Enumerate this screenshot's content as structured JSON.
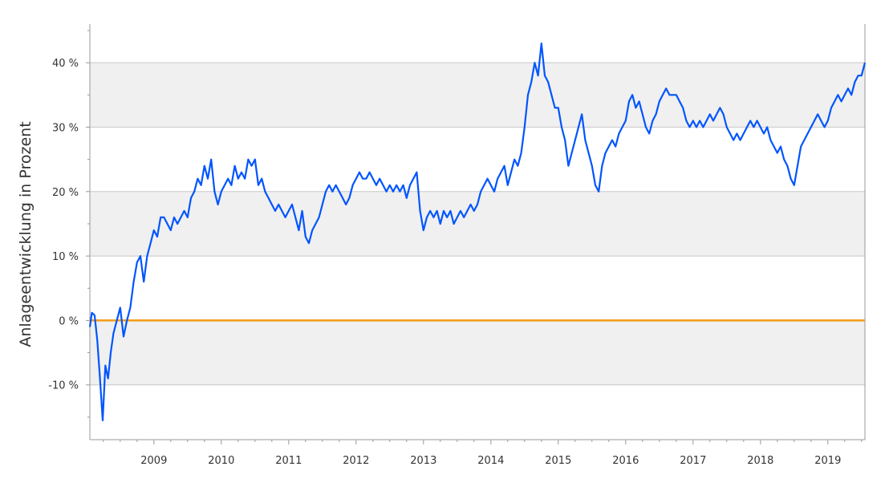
{
  "chart_data": {
    "type": "line",
    "ylabel": "Anlageentwicklung  in Prozent",
    "ylim": [
      -18.5,
      46
    ],
    "xlim": [
      2008.05,
      2019.55
    ],
    "grid": true,
    "y_ticks": [
      {
        "value": 40,
        "label": "40 %"
      },
      {
        "value": 30,
        "label": "30 %"
      },
      {
        "value": 20,
        "label": "20 %"
      },
      {
        "value": 10,
        "label": "10 %"
      },
      {
        "value": 0,
        "label": "0 %"
      },
      {
        "value": -10,
        "label": "-10 %"
      }
    ],
    "x_ticks": [
      {
        "value": 2009,
        "label": "2009"
      },
      {
        "value": 2010,
        "label": "2010"
      },
      {
        "value": 2011,
        "label": "2011"
      },
      {
        "value": 2012,
        "label": "2012"
      },
      {
        "value": 2013,
        "label": "2013"
      },
      {
        "value": 2014,
        "label": "2014"
      },
      {
        "value": 2015,
        "label": "2015"
      },
      {
        "value": 2016,
        "label": "2016"
      },
      {
        "value": 2017,
        "label": "2017"
      },
      {
        "value": 2018,
        "label": "2018"
      },
      {
        "value": 2019,
        "label": "2019"
      }
    ],
    "colors": {
      "series": "#0055ff",
      "zero_line": "#f39c12",
      "band": "#f0f0f0",
      "grid": "#c8c8c8",
      "axis": "#999999"
    },
    "baseline": {
      "value": 0
    },
    "series": [
      {
        "values": [
          [
            2008.05,
            -1
          ],
          [
            2008.08,
            1.2
          ],
          [
            2008.12,
            0.8
          ],
          [
            2008.16,
            -3
          ],
          [
            2008.2,
            -9
          ],
          [
            2008.24,
            -15.5
          ],
          [
            2008.28,
            -7
          ],
          [
            2008.32,
            -9
          ],
          [
            2008.36,
            -5
          ],
          [
            2008.4,
            -2
          ],
          [
            2008.45,
            0
          ],
          [
            2008.5,
            2
          ],
          [
            2008.55,
            -2.5
          ],
          [
            2008.6,
            0
          ],
          [
            2008.65,
            2
          ],
          [
            2008.7,
            6
          ],
          [
            2008.75,
            9
          ],
          [
            2008.8,
            10
          ],
          [
            2008.85,
            6
          ],
          [
            2008.9,
            10
          ],
          [
            2008.95,
            12
          ],
          [
            2009.0,
            14
          ],
          [
            2009.05,
            13
          ],
          [
            2009.1,
            16
          ],
          [
            2009.15,
            16
          ],
          [
            2009.2,
            15
          ],
          [
            2009.25,
            14
          ],
          [
            2009.3,
            16
          ],
          [
            2009.35,
            15
          ],
          [
            2009.4,
            16
          ],
          [
            2009.45,
            17
          ],
          [
            2009.5,
            16
          ],
          [
            2009.55,
            19
          ],
          [
            2009.6,
            20
          ],
          [
            2009.65,
            22
          ],
          [
            2009.7,
            21
          ],
          [
            2009.75,
            24
          ],
          [
            2009.8,
            22
          ],
          [
            2009.85,
            25
          ],
          [
            2009.9,
            20
          ],
          [
            2009.95,
            18
          ],
          [
            2010.0,
            20
          ],
          [
            2010.05,
            21
          ],
          [
            2010.1,
            22
          ],
          [
            2010.15,
            21
          ],
          [
            2010.2,
            24
          ],
          [
            2010.25,
            22
          ],
          [
            2010.3,
            23
          ],
          [
            2010.35,
            22
          ],
          [
            2010.4,
            25
          ],
          [
            2010.45,
            24
          ],
          [
            2010.5,
            25
          ],
          [
            2010.55,
            21
          ],
          [
            2010.6,
            22
          ],
          [
            2010.65,
            20
          ],
          [
            2010.7,
            19
          ],
          [
            2010.75,
            18
          ],
          [
            2010.8,
            17
          ],
          [
            2010.85,
            18
          ],
          [
            2010.9,
            17
          ],
          [
            2010.95,
            16
          ],
          [
            2011.0,
            17
          ],
          [
            2011.05,
            18
          ],
          [
            2011.1,
            16
          ],
          [
            2011.15,
            14
          ],
          [
            2011.2,
            17
          ],
          [
            2011.25,
            13
          ],
          [
            2011.3,
            12
          ],
          [
            2011.35,
            14
          ],
          [
            2011.4,
            15
          ],
          [
            2011.45,
            16
          ],
          [
            2011.5,
            18
          ],
          [
            2011.55,
            20
          ],
          [
            2011.6,
            21
          ],
          [
            2011.65,
            20
          ],
          [
            2011.7,
            21
          ],
          [
            2011.75,
            20
          ],
          [
            2011.8,
            19
          ],
          [
            2011.85,
            18
          ],
          [
            2011.9,
            19
          ],
          [
            2011.95,
            21
          ],
          [
            2012.0,
            22
          ],
          [
            2012.05,
            23
          ],
          [
            2012.1,
            22
          ],
          [
            2012.15,
            22
          ],
          [
            2012.2,
            23
          ],
          [
            2012.25,
            22
          ],
          [
            2012.3,
            21
          ],
          [
            2012.35,
            22
          ],
          [
            2012.4,
            21
          ],
          [
            2012.45,
            20
          ],
          [
            2012.5,
            21
          ],
          [
            2012.55,
            20
          ],
          [
            2012.6,
            21
          ],
          [
            2012.65,
            20
          ],
          [
            2012.7,
            21
          ],
          [
            2012.75,
            19
          ],
          [
            2012.8,
            21
          ],
          [
            2012.85,
            22
          ],
          [
            2012.9,
            23
          ],
          [
            2012.95,
            17
          ],
          [
            2013.0,
            14
          ],
          [
            2013.05,
            16
          ],
          [
            2013.1,
            17
          ],
          [
            2013.15,
            16
          ],
          [
            2013.2,
            17
          ],
          [
            2013.25,
            15
          ],
          [
            2013.3,
            17
          ],
          [
            2013.35,
            16
          ],
          [
            2013.4,
            17
          ],
          [
            2013.45,
            15
          ],
          [
            2013.5,
            16
          ],
          [
            2013.55,
            17
          ],
          [
            2013.6,
            16
          ],
          [
            2013.65,
            17
          ],
          [
            2013.7,
            18
          ],
          [
            2013.75,
            17
          ],
          [
            2013.8,
            18
          ],
          [
            2013.85,
            20
          ],
          [
            2013.9,
            21
          ],
          [
            2013.95,
            22
          ],
          [
            2014.0,
            21
          ],
          [
            2014.05,
            20
          ],
          [
            2014.1,
            22
          ],
          [
            2014.15,
            23
          ],
          [
            2014.2,
            24
          ],
          [
            2014.25,
            21
          ],
          [
            2014.3,
            23
          ],
          [
            2014.35,
            25
          ],
          [
            2014.4,
            24
          ],
          [
            2014.45,
            26
          ],
          [
            2014.5,
            30
          ],
          [
            2014.55,
            35
          ],
          [
            2014.6,
            37
          ],
          [
            2014.65,
            40
          ],
          [
            2014.7,
            38
          ],
          [
            2014.75,
            43
          ],
          [
            2014.8,
            38
          ],
          [
            2014.85,
            37
          ],
          [
            2014.9,
            35
          ],
          [
            2014.95,
            33
          ],
          [
            2015.0,
            33
          ],
          [
            2015.05,
            30
          ],
          [
            2015.1,
            28
          ],
          [
            2015.15,
            24
          ],
          [
            2015.2,
            26
          ],
          [
            2015.25,
            28
          ],
          [
            2015.3,
            30
          ],
          [
            2015.35,
            32
          ],
          [
            2015.4,
            28
          ],
          [
            2015.45,
            26
          ],
          [
            2015.5,
            24
          ],
          [
            2015.55,
            21
          ],
          [
            2015.6,
            20
          ],
          [
            2015.65,
            24
          ],
          [
            2015.7,
            26
          ],
          [
            2015.75,
            27
          ],
          [
            2015.8,
            28
          ],
          [
            2015.85,
            27
          ],
          [
            2015.9,
            29
          ],
          [
            2015.95,
            30
          ],
          [
            2016.0,
            31
          ],
          [
            2016.05,
            34
          ],
          [
            2016.1,
            35
          ],
          [
            2016.15,
            33
          ],
          [
            2016.2,
            34
          ],
          [
            2016.25,
            32
          ],
          [
            2016.3,
            30
          ],
          [
            2016.35,
            29
          ],
          [
            2016.4,
            31
          ],
          [
            2016.45,
            32
          ],
          [
            2016.5,
            34
          ],
          [
            2016.55,
            35
          ],
          [
            2016.6,
            36
          ],
          [
            2016.65,
            35
          ],
          [
            2016.7,
            35
          ],
          [
            2016.75,
            35
          ],
          [
            2016.8,
            34
          ],
          [
            2016.85,
            33
          ],
          [
            2016.9,
            31
          ],
          [
            2016.95,
            30
          ],
          [
            2017.0,
            31
          ],
          [
            2017.05,
            30
          ],
          [
            2017.1,
            31
          ],
          [
            2017.15,
            30
          ],
          [
            2017.2,
            31
          ],
          [
            2017.25,
            32
          ],
          [
            2017.3,
            31
          ],
          [
            2017.35,
            32
          ],
          [
            2017.4,
            33
          ],
          [
            2017.45,
            32
          ],
          [
            2017.5,
            30
          ],
          [
            2017.55,
            29
          ],
          [
            2017.6,
            28
          ],
          [
            2017.65,
            29
          ],
          [
            2017.7,
            28
          ],
          [
            2017.75,
            29
          ],
          [
            2017.8,
            30
          ],
          [
            2017.85,
            31
          ],
          [
            2017.9,
            30
          ],
          [
            2017.95,
            31
          ],
          [
            2018.0,
            30
          ],
          [
            2018.05,
            29
          ],
          [
            2018.1,
            30
          ],
          [
            2018.15,
            28
          ],
          [
            2018.2,
            27
          ],
          [
            2018.25,
            26
          ],
          [
            2018.3,
            27
          ],
          [
            2018.35,
            25
          ],
          [
            2018.4,
            24
          ],
          [
            2018.45,
            22
          ],
          [
            2018.5,
            21
          ],
          [
            2018.55,
            24
          ],
          [
            2018.6,
            27
          ],
          [
            2018.65,
            28
          ],
          [
            2018.7,
            29
          ],
          [
            2018.75,
            30
          ],
          [
            2018.8,
            31
          ],
          [
            2018.85,
            32
          ],
          [
            2018.9,
            31
          ],
          [
            2018.95,
            30
          ],
          [
            2019.0,
            31
          ],
          [
            2019.05,
            33
          ],
          [
            2019.1,
            34
          ],
          [
            2019.15,
            35
          ],
          [
            2019.2,
            34
          ],
          [
            2019.25,
            35
          ],
          [
            2019.3,
            36
          ],
          [
            2019.35,
            35
          ],
          [
            2019.4,
            37
          ],
          [
            2019.45,
            38
          ],
          [
            2019.5,
            38
          ],
          [
            2019.55,
            40
          ]
        ]
      }
    ]
  }
}
